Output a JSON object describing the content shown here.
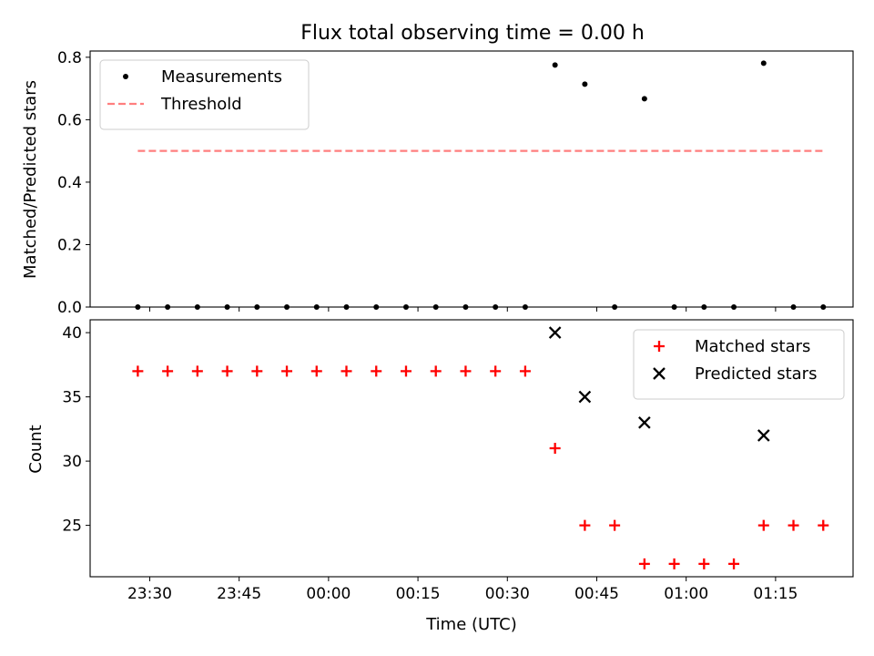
{
  "title": "Flux total observing time = 0.00 h",
  "chart_data": [
    {
      "type": "scatter",
      "ylabel": "Matched/Predicted stars",
      "ylim": [
        0,
        0.82
      ],
      "yticks": [
        0.0,
        0.2,
        0.4,
        0.6,
        0.8
      ],
      "ytick_labels": [
        "0.0",
        "0.2",
        "0.4",
        "0.6",
        "0.8"
      ],
      "legend_position": "top-left",
      "series": [
        {
          "name": "Measurements",
          "marker": "dot",
          "color": "#000000",
          "points": [
            [
              "23:28",
              0.0
            ],
            [
              "23:33",
              0.0
            ],
            [
              "23:38",
              0.0
            ],
            [
              "23:43",
              0.0
            ],
            [
              "23:48",
              0.0
            ],
            [
              "23:53",
              0.0
            ],
            [
              "23:58",
              0.0
            ],
            [
              "00:03",
              0.0
            ],
            [
              "00:08",
              0.0
            ],
            [
              "00:13",
              0.0
            ],
            [
              "00:18",
              0.0
            ],
            [
              "00:23",
              0.0
            ],
            [
              "00:28",
              0.0
            ],
            [
              "00:33",
              0.0
            ],
            [
              "00:38",
              0.775
            ],
            [
              "00:43",
              0.714
            ],
            [
              "00:48",
              0.0
            ],
            [
              "00:53",
              0.667
            ],
            [
              "00:58",
              0.0
            ],
            [
              "01:03",
              0.0
            ],
            [
              "01:08",
              0.0
            ],
            [
              "01:13",
              0.781
            ],
            [
              "01:18",
              0.0
            ],
            [
              "01:23",
              0.0
            ]
          ]
        },
        {
          "name": "Threshold",
          "marker": "dashed-line",
          "color": "#ff7f7f",
          "points": [
            [
              "23:28",
              0.5
            ],
            [
              "01:23",
              0.5
            ]
          ]
        }
      ]
    },
    {
      "type": "scatter",
      "xlabel": "Time (UTC)",
      "ylabel": "Count",
      "ylim": [
        21,
        41
      ],
      "yticks": [
        25,
        30,
        35,
        40
      ],
      "ytick_labels": [
        "25",
        "30",
        "35",
        "40"
      ],
      "xticks": [
        "23:30",
        "23:45",
        "00:00",
        "00:15",
        "00:30",
        "00:45",
        "01:00",
        "01:15"
      ],
      "xlim": [
        "23:20",
        "01:28"
      ],
      "legend_position": "top-right",
      "series": [
        {
          "name": "Matched stars",
          "marker": "plus",
          "color": "#ff0000",
          "points": [
            [
              "23:28",
              37
            ],
            [
              "23:33",
              37
            ],
            [
              "23:38",
              37
            ],
            [
              "23:43",
              37
            ],
            [
              "23:48",
              37
            ],
            [
              "23:53",
              37
            ],
            [
              "23:58",
              37
            ],
            [
              "00:03",
              37
            ],
            [
              "00:08",
              37
            ],
            [
              "00:13",
              37
            ],
            [
              "00:18",
              37
            ],
            [
              "00:23",
              37
            ],
            [
              "00:28",
              37
            ],
            [
              "00:33",
              37
            ],
            [
              "00:38",
              31
            ],
            [
              "00:43",
              25
            ],
            [
              "00:48",
              25
            ],
            [
              "00:53",
              22
            ],
            [
              "00:58",
              22
            ],
            [
              "01:03",
              22
            ],
            [
              "01:08",
              22
            ],
            [
              "01:13",
              25
            ],
            [
              "01:18",
              25
            ],
            [
              "01:23",
              25
            ]
          ]
        },
        {
          "name": "Predicted stars",
          "marker": "x",
          "color": "#000000",
          "points": [
            [
              "00:38",
              40
            ],
            [
              "00:43",
              35
            ],
            [
              "00:53",
              33
            ],
            [
              "01:13",
              32
            ]
          ]
        }
      ]
    }
  ]
}
